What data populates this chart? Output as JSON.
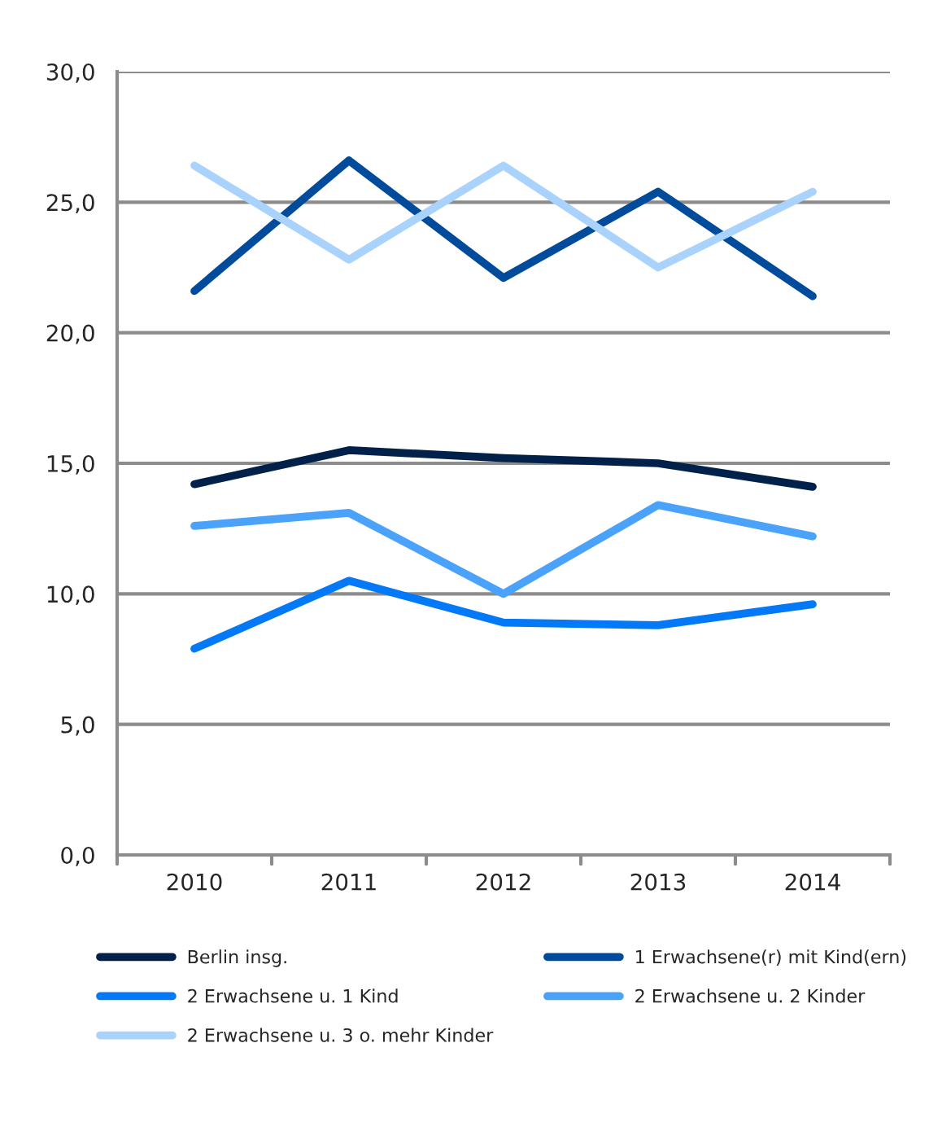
{
  "chart_data": {
    "type": "line",
    "categories": [
      "2010",
      "2011",
      "2012",
      "2013",
      "2014"
    ],
    "series": [
      {
        "name": "Berlin insg.",
        "color": "#02214a",
        "values": [
          14.2,
          15.5,
          15.2,
          15.0,
          14.1
        ]
      },
      {
        "name": "1 Erwachsene(r) mit Kind(ern)",
        "color": "#004b9b",
        "values": [
          21.6,
          26.6,
          22.1,
          25.4,
          21.4
        ]
      },
      {
        "name": "2 Erwachsene u. 1 Kind",
        "color": "#0479f7",
        "values": [
          7.9,
          10.5,
          8.9,
          8.8,
          9.6
        ]
      },
      {
        "name": "2 Erwachsene u. 2 Kinder",
        "color": "#4aa2fb",
        "values": [
          12.6,
          13.1,
          10.0,
          13.4,
          12.2
        ]
      },
      {
        "name": "2 Erwachsene u. 3 o. mehr Kinder",
        "color": "#a9d2fd",
        "values": [
          26.4,
          22.8,
          26.4,
          22.5,
          25.4
        ]
      }
    ],
    "ylim": [
      0,
      30
    ],
    "yticks": [
      {
        "value": 0,
        "label": "0,0"
      },
      {
        "value": 5,
        "label": "5,0"
      },
      {
        "value": 10,
        "label": "10,0"
      },
      {
        "value": 15,
        "label": "15,0"
      },
      {
        "value": 20,
        "label": "20,0"
      },
      {
        "value": 25,
        "label": "25,0"
      },
      {
        "value": 30,
        "label": "30,0"
      }
    ],
    "grid": "y",
    "legend": "bottom",
    "marker": "none",
    "line_style": "solid"
  }
}
